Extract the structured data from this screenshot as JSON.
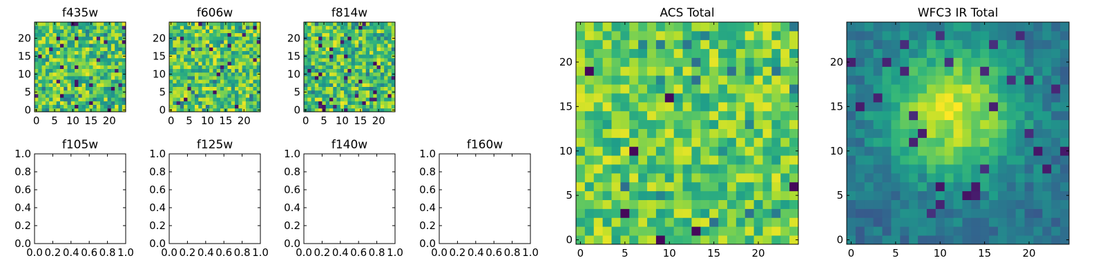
{
  "chart_data": [
    {
      "type": "heatmap",
      "title": "f435w",
      "xticks": [
        "0",
        "5",
        "10",
        "15",
        "20"
      ],
      "yticks": [
        "0",
        "5",
        "10",
        "15",
        "20"
      ],
      "grid_size": [
        25,
        25
      ],
      "xlim": [
        -0.5,
        24.5
      ],
      "ylim": [
        -0.5,
        24.5
      ],
      "colormap": "viridis",
      "pattern": "noise",
      "values_note": "per-pixel values not legible; rendered as a pseudo-noise field"
    },
    {
      "type": "heatmap",
      "title": "f606w",
      "xticks": [
        "0",
        "5",
        "10",
        "15",
        "20"
      ],
      "yticks": [
        "0",
        "5",
        "10",
        "15",
        "20"
      ],
      "grid_size": [
        25,
        25
      ],
      "xlim": [
        -0.5,
        24.5
      ],
      "ylim": [
        -0.5,
        24.5
      ],
      "colormap": "viridis",
      "pattern": "noise"
    },
    {
      "type": "heatmap",
      "title": "f814w",
      "xticks": [
        "0",
        "5",
        "10",
        "15",
        "20"
      ],
      "yticks": [
        "0",
        "5",
        "10",
        "15",
        "20"
      ],
      "grid_size": [
        25,
        25
      ],
      "xlim": [
        -0.5,
        24.5
      ],
      "ylim": [
        -0.5,
        24.5
      ],
      "colormap": "viridis",
      "pattern": "noise"
    },
    {
      "type": "empty",
      "title": "f105w",
      "xticks": [
        "0.0",
        "0.2",
        "0.4",
        "0.6",
        "0.8",
        "1.0"
      ],
      "yticks": [
        "0.0",
        "0.2",
        "0.4",
        "0.6",
        "0.8",
        "1.0"
      ],
      "xlim": [
        0,
        1
      ],
      "ylim": [
        0,
        1
      ]
    },
    {
      "type": "empty",
      "title": "f125w",
      "xticks": [
        "0.0",
        "0.2",
        "0.4",
        "0.6",
        "0.8",
        "1.0"
      ],
      "yticks": [
        "0.0",
        "0.2",
        "0.4",
        "0.6",
        "0.8",
        "1.0"
      ],
      "xlim": [
        0,
        1
      ],
      "ylim": [
        0,
        1
      ]
    },
    {
      "type": "empty",
      "title": "f140w",
      "xticks": [
        "0.0",
        "0.2",
        "0.4",
        "0.6",
        "0.8",
        "1.0"
      ],
      "yticks": [
        "0.0",
        "0.2",
        "0.4",
        "0.6",
        "0.8",
        "1.0"
      ],
      "xlim": [
        0,
        1
      ],
      "ylim": [
        0,
        1
      ]
    },
    {
      "type": "empty",
      "title": "f160w",
      "xticks": [
        "0.0",
        "0.2",
        "0.4",
        "0.6",
        "0.8",
        "1.0"
      ],
      "yticks": [
        "0.0",
        "0.2",
        "0.4",
        "0.6",
        "0.8",
        "1.0"
      ],
      "xlim": [
        0,
        1
      ],
      "ylim": [
        0,
        1
      ]
    },
    {
      "type": "heatmap",
      "title": "ACS Total",
      "xticks": [
        "0",
        "5",
        "10",
        "15",
        "20"
      ],
      "yticks": [
        "0",
        "5",
        "10",
        "15",
        "20"
      ],
      "grid_size": [
        25,
        25
      ],
      "xlim": [
        -0.5,
        24.5
      ],
      "ylim": [
        -0.5,
        24.5
      ],
      "colormap": "viridis",
      "pattern": "noise_bright"
    },
    {
      "type": "heatmap",
      "title": "WFC3 IR Total",
      "xticks": [
        "0",
        "5",
        "10",
        "15",
        "20"
      ],
      "yticks": [
        "0",
        "5",
        "10",
        "15",
        "20"
      ],
      "grid_size": [
        25,
        25
      ],
      "xlim": [
        -0.5,
        24.5
      ],
      "ylim": [
        -0.5,
        24.5
      ],
      "colormap": "viridis",
      "pattern": "blob",
      "blob_center": [
        11.5,
        14.5
      ]
    }
  ]
}
